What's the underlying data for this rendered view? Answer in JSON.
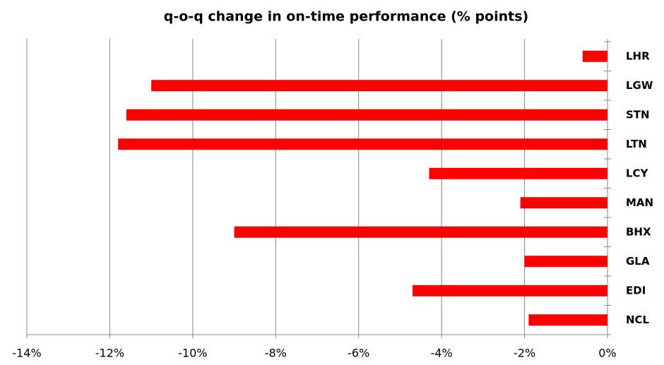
{
  "chart_data": {
    "type": "bar",
    "orientation": "horizontal",
    "title": "q-o-q change in on-time performance (% points)",
    "categories": [
      "LHR",
      "LGW",
      "STN",
      "LTN",
      "LCY",
      "MAN",
      "BHX",
      "GLA",
      "EDI",
      "NCL"
    ],
    "values": [
      -0.6,
      -11.0,
      -11.6,
      -11.8,
      -4.3,
      -2.1,
      -9.0,
      -2.0,
      -4.7,
      -1.9
    ],
    "color": "#ff0000",
    "xlim": [
      -14,
      0
    ],
    "xticks": [
      {
        "value": -14,
        "label": "-14%"
      },
      {
        "value": -12,
        "label": "-12%"
      },
      {
        "value": -10,
        "label": "-10%"
      },
      {
        "value": -8,
        "label": "-8%"
      },
      {
        "value": -6,
        "label": "-6%"
      },
      {
        "value": -4,
        "label": "-4%"
      },
      {
        "value": -2,
        "label": "-2%"
      },
      {
        "value": 0,
        "label": "0%"
      }
    ],
    "grid": true
  }
}
